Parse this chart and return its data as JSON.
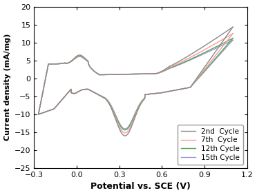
{
  "xlabel": "Potential vs. SCE (V)",
  "ylabel": "Current density (mA/mg)",
  "xlim": [
    -0.3,
    1.2
  ],
  "ylim": [
    -25,
    20
  ],
  "xticks": [
    -0.3,
    0.0,
    0.3,
    0.6,
    0.9,
    1.2
  ],
  "yticks": [
    -25,
    -20,
    -15,
    -10,
    -5,
    0,
    5,
    10,
    15,
    20
  ],
  "cycles": [
    {
      "label": "2nd  Cycle",
      "color": "#888888",
      "lw": 1.0,
      "zorder": 4,
      "sp": 1.0,
      "so": 1.0
    },
    {
      "label": "7th  Cycle",
      "color": "#FF9999",
      "lw": 1.0,
      "zorder": 3,
      "sp": 0.93,
      "so": 0.86
    },
    {
      "label": "12th Cycle",
      "color": "#55AA55",
      "lw": 1.0,
      "zorder": 2,
      "sp": 0.86,
      "so": 0.76
    },
    {
      "label": "15th Cycle",
      "color": "#9999DD",
      "lw": 1.0,
      "zorder": 1,
      "sp": 0.83,
      "so": 0.72
    }
  ],
  "figsize": [
    3.72,
    2.83
  ],
  "dpi": 100
}
